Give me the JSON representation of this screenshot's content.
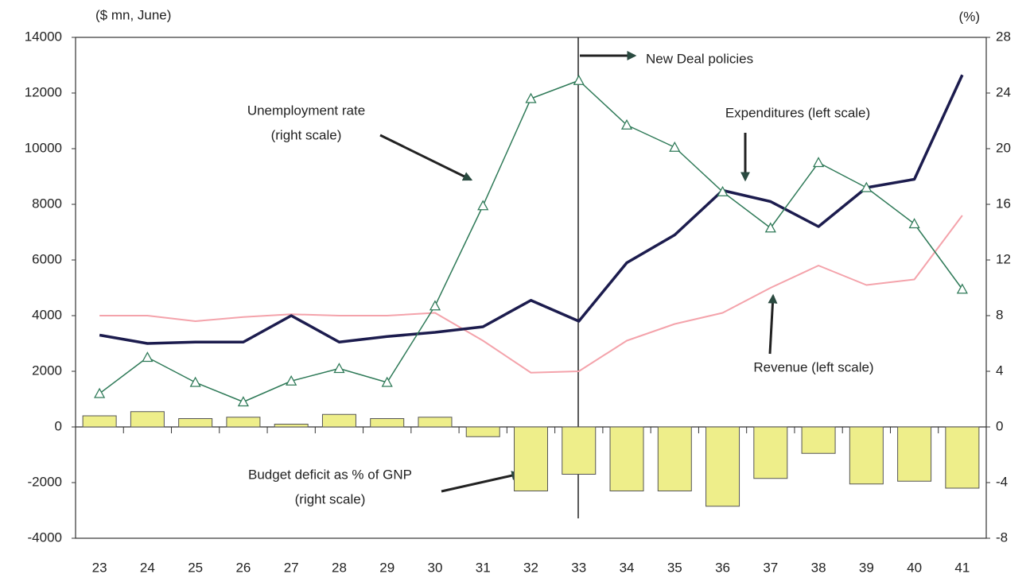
{
  "chart_data": {
    "type": "line",
    "y_label": "($ mn, June)",
    "y2_label": "(%)",
    "categories": [
      "23",
      "24",
      "25",
      "26",
      "27",
      "28",
      "29",
      "30",
      "31",
      "32",
      "33",
      "34",
      "35",
      "36",
      "37",
      "38",
      "39",
      "40",
      "41"
    ],
    "ylim": [
      -4000,
      14000
    ],
    "yticks": [
      -4000,
      -2000,
      0,
      2000,
      4000,
      6000,
      8000,
      10000,
      12000,
      14000
    ],
    "y2lim": [
      -8,
      28
    ],
    "y2ticks": [
      -8,
      -4,
      0,
      4,
      8,
      12,
      16,
      20,
      24,
      28
    ],
    "series": [
      {
        "kind": "bar",
        "axis": "y2",
        "color": "#eeee8a",
        "values": [
          0.8,
          1.1,
          0.6,
          0.7,
          0.2,
          0.9,
          0.6,
          0.7,
          -0.7,
          -4.6,
          -3.4,
          -4.6,
          -4.6,
          -5.7,
          -3.7,
          -1.9,
          -4.1,
          -3.9,
          -4.4
        ]
      },
      {
        "kind": "line",
        "color": "#f4a3ab",
        "values": [
          4000,
          4000,
          3800,
          3950,
          4050,
          4000,
          4000,
          4100,
          3100,
          1950,
          2000,
          3100,
          3700,
          4100,
          5000,
          5800,
          5100,
          5300,
          7600
        ]
      },
      {
        "kind": "line",
        "color": "#1c1c4e",
        "values": [
          3300,
          3000,
          3050,
          3050,
          4000,
          3050,
          3250,
          3400,
          3600,
          4550,
          3800,
          5900,
          6900,
          8500,
          8100,
          7200,
          8600,
          8900,
          12650
        ]
      },
      {
        "kind": "markers",
        "axis": "y2",
        "color": "#2f7a58",
        "values": [
          2.4,
          5.0,
          3.2,
          1.8,
          3.3,
          4.2,
          3.2,
          8.7,
          15.9,
          23.6,
          24.9,
          21.7,
          20.1,
          16.9,
          14.3,
          19.0,
          17.2,
          14.6,
          9.9
        ]
      }
    ],
    "annotations": [
      {
        "lines": [
          "Unemployment rate",
          "(right scale)"
        ]
      },
      {
        "lines": [
          "New Deal policies"
        ]
      },
      {
        "lines": [
          "Expenditures (left scale)"
        ]
      },
      {
        "lines": [
          "Revenue (left scale)"
        ]
      },
      {
        "lines": [
          "Budget deficit as % of GNP",
          "(right scale)"
        ]
      }
    ]
  }
}
